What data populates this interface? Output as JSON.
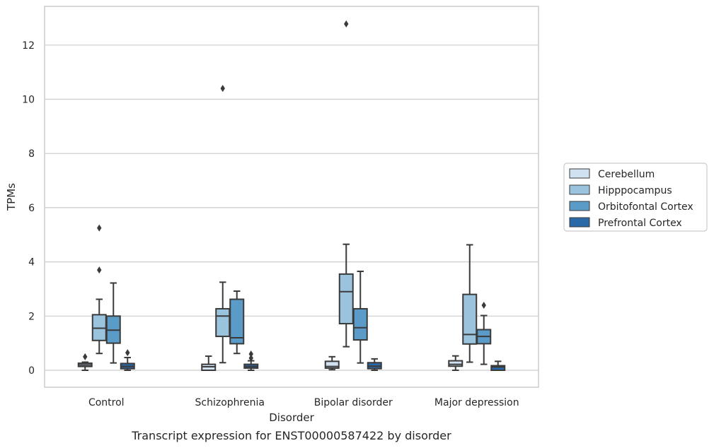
{
  "chart_data": {
    "type": "box",
    "title": "Transcript expression for ENST00000587422 by disorder",
    "xlabel": "Disorder",
    "ylabel": "TPMs",
    "ylim": [
      -0.62,
      13.45
    ],
    "yticks": [
      0,
      2,
      4,
      6,
      8,
      10,
      12
    ],
    "grid": "horizontal",
    "legend_position": "right",
    "categories": [
      "Control",
      "Schizophrenia",
      "Bipolar disorder",
      "Major depression"
    ],
    "series": [
      {
        "name": "Cerebellum",
        "color": "#d0e1f1",
        "boxes": [
          {
            "whislo": 0.0,
            "q1": 0.14,
            "med": 0.2,
            "q3": 0.26,
            "whishi": 0.3,
            "fliers": [
              0.5
            ]
          },
          {
            "whislo": 0.0,
            "q1": 0.0,
            "med": 0.13,
            "q3": 0.22,
            "whishi": 0.52,
            "fliers": []
          },
          {
            "whislo": 0.02,
            "q1": 0.08,
            "med": 0.14,
            "q3": 0.33,
            "whishi": 0.5,
            "fliers": []
          },
          {
            "whislo": 0.0,
            "q1": 0.15,
            "med": 0.22,
            "q3": 0.35,
            "whishi": 0.53,
            "fliers": []
          }
        ]
      },
      {
        "name": "Hipppocampus",
        "color": "#9ac3dd",
        "boxes": [
          {
            "whislo": 0.62,
            "q1": 1.1,
            "med": 1.55,
            "q3": 2.05,
            "whishi": 2.62,
            "fliers": [
              3.7,
              5.25
            ]
          },
          {
            "whislo": 0.28,
            "q1": 1.25,
            "med": 2.0,
            "q3": 2.27,
            "whishi": 3.25,
            "fliers": [
              10.4
            ]
          },
          {
            "whislo": 0.87,
            "q1": 1.72,
            "med": 2.9,
            "q3": 3.55,
            "whishi": 4.65,
            "fliers": [
              12.78
            ]
          },
          {
            "whislo": 0.3,
            "q1": 0.97,
            "med": 1.32,
            "q3": 2.8,
            "whishi": 4.63,
            "fliers": []
          }
        ]
      },
      {
        "name": "Orbitofontal Cortex",
        "color": "#5a9bc8",
        "boxes": [
          {
            "whislo": 0.27,
            "q1": 1.0,
            "med": 1.48,
            "q3": 2.0,
            "whishi": 3.22,
            "fliers": []
          },
          {
            "whislo": 0.62,
            "q1": 0.98,
            "med": 1.2,
            "q3": 2.62,
            "whishi": 2.92,
            "fliers": []
          },
          {
            "whislo": 0.27,
            "q1": 1.12,
            "med": 1.57,
            "q3": 2.27,
            "whishi": 3.65,
            "fliers": []
          },
          {
            "whislo": 0.22,
            "q1": 0.98,
            "med": 1.25,
            "q3": 1.5,
            "whishi": 2.02,
            "fliers": [
              2.4
            ]
          }
        ]
      },
      {
        "name": "Prefrontal Cortex",
        "color": "#2a69a8",
        "boxes": [
          {
            "whislo": 0.0,
            "q1": 0.06,
            "med": 0.14,
            "q3": 0.25,
            "whishi": 0.47,
            "fliers": [
              0.65
            ]
          },
          {
            "whislo": 0.0,
            "q1": 0.08,
            "med": 0.14,
            "q3": 0.22,
            "whishi": 0.35,
            "fliers": [
              0.45,
              0.6
            ]
          },
          {
            "whislo": 0.0,
            "q1": 0.06,
            "med": 0.15,
            "q3": 0.28,
            "whishi": 0.42,
            "fliers": []
          },
          {
            "whislo": 0.0,
            "q1": 0.0,
            "med": 0.12,
            "q3": 0.17,
            "whishi": 0.33,
            "fliers": []
          }
        ]
      }
    ]
  }
}
